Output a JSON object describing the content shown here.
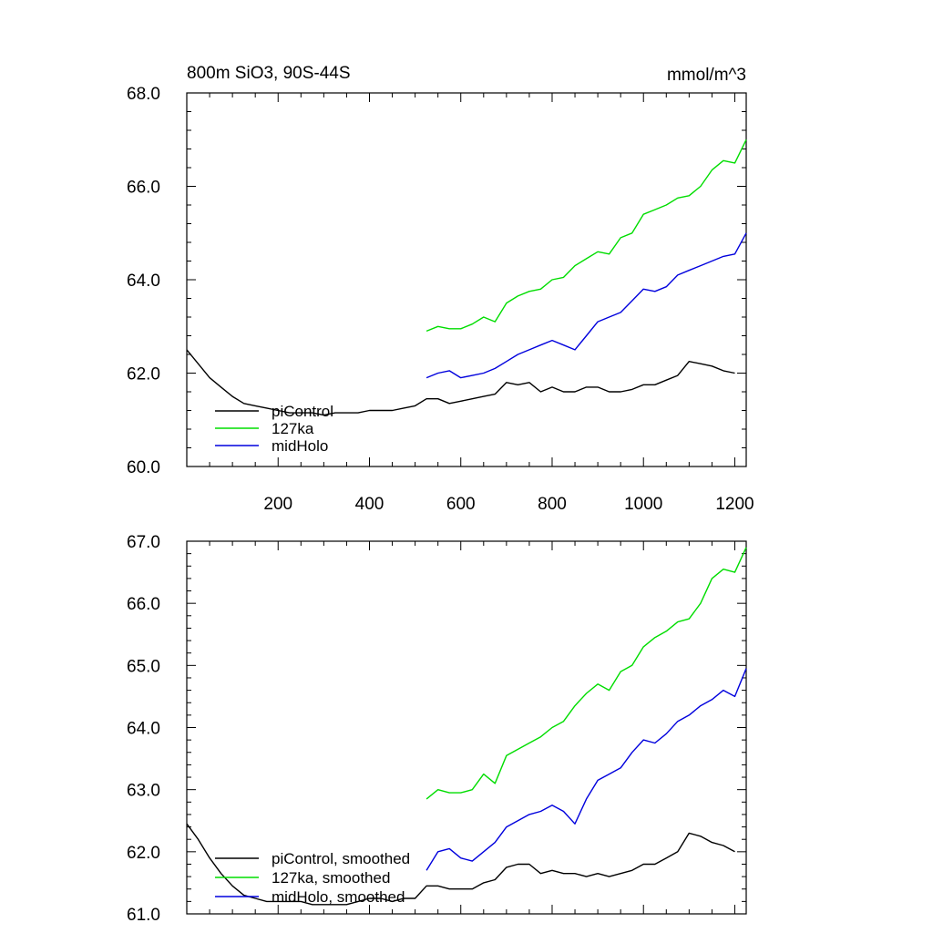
{
  "chart_data": [
    {
      "type": "line",
      "title": "800m SiO3, 90S-44S",
      "units": "mmol/m^3",
      "xlabel": "",
      "ylabel": "",
      "xlim": [
        0,
        1225
      ],
      "ylim": [
        60,
        68
      ],
      "xticks": [
        200,
        400,
        600,
        800,
        1000,
        1200
      ],
      "xtick_labels": [
        "200",
        "400",
        "600",
        "800",
        "1000",
        "1200"
      ],
      "yticks": [
        60,
        62,
        64,
        66,
        68
      ],
      "ytick_labels": [
        "60.0",
        "62.0",
        "64.0",
        "66.0",
        "68.0"
      ],
      "legend": "bottom-left",
      "series": [
        {
          "name": "piControl",
          "color": "#000000",
          "x": [
            0,
            25,
            50,
            75,
            100,
            125,
            150,
            175,
            200,
            225,
            250,
            275,
            300,
            325,
            350,
            375,
            400,
            425,
            450,
            475,
            500,
            525,
            550,
            575,
            600,
            625,
            650,
            675,
            700,
            725,
            750,
            775,
            800,
            825,
            850,
            875,
            900,
            925,
            950,
            975,
            1000,
            1025,
            1050,
            1075,
            1100,
            1125,
            1150,
            1175,
            1200
          ],
          "y": [
            62.5,
            62.2,
            61.9,
            61.7,
            61.5,
            61.35,
            61.3,
            61.25,
            61.2,
            61.15,
            61.15,
            61.15,
            61.1,
            61.15,
            61.15,
            61.15,
            61.2,
            61.2,
            61.2,
            61.25,
            61.3,
            61.45,
            61.45,
            61.35,
            61.4,
            61.45,
            61.5,
            61.55,
            61.8,
            61.75,
            61.8,
            61.6,
            61.7,
            61.6,
            61.6,
            61.7,
            61.7,
            61.6,
            61.6,
            61.65,
            61.75,
            61.75,
            61.85,
            61.95,
            62.25,
            62.2,
            62.15,
            62.05,
            62.0
          ]
        },
        {
          "name": "127ka",
          "color": "#00dd00",
          "x": [
            525,
            550,
            575,
            600,
            625,
            650,
            675,
            700,
            725,
            750,
            775,
            800,
            825,
            850,
            875,
            900,
            925,
            950,
            975,
            1000,
            1025,
            1050,
            1075,
            1100,
            1125,
            1150,
            1175,
            1200,
            1225
          ],
          "y": [
            62.9,
            63.0,
            62.95,
            62.95,
            63.05,
            63.2,
            63.1,
            63.5,
            63.65,
            63.75,
            63.8,
            64.0,
            64.05,
            64.3,
            64.45,
            64.6,
            64.55,
            64.9,
            65.0,
            65.4,
            65.5,
            65.6,
            65.75,
            65.8,
            66.0,
            66.35,
            66.55,
            66.5,
            67.0
          ]
        },
        {
          "name": "midHolo",
          "color": "#0000dd",
          "x": [
            525,
            550,
            575,
            600,
            625,
            650,
            675,
            700,
            725,
            750,
            775,
            800,
            825,
            850,
            875,
            900,
            925,
            950,
            975,
            1000,
            1025,
            1050,
            1075,
            1100,
            1125,
            1150,
            1175,
            1200,
            1225
          ],
          "y": [
            61.9,
            62.0,
            62.05,
            61.9,
            61.95,
            62.0,
            62.1,
            62.25,
            62.4,
            62.5,
            62.6,
            62.7,
            62.6,
            62.5,
            62.8,
            63.1,
            63.2,
            63.3,
            63.55,
            63.8,
            63.75,
            63.85,
            64.1,
            64.2,
            64.3,
            64.4,
            64.5,
            64.55,
            65.0
          ]
        }
      ]
    },
    {
      "type": "line",
      "title": "",
      "xlabel": "",
      "ylabel": "",
      "xlim": [
        0,
        1225
      ],
      "ylim": [
        61,
        67
      ],
      "xticks": [
        200,
        400,
        600,
        800,
        1000,
        1200
      ],
      "yticks": [
        61,
        62,
        63,
        64,
        65,
        66,
        67
      ],
      "ytick_labels": [
        "61.0",
        "62.0",
        "63.0",
        "64.0",
        "65.0",
        "66.0",
        "67.0"
      ],
      "legend": "bottom-left",
      "series": [
        {
          "name": "piControl, smoothed",
          "color": "#000000",
          "x": [
            0,
            25,
            50,
            75,
            100,
            125,
            150,
            175,
            200,
            225,
            250,
            275,
            300,
            325,
            350,
            375,
            400,
            425,
            450,
            475,
            500,
            525,
            550,
            575,
            600,
            625,
            650,
            675,
            700,
            725,
            750,
            775,
            800,
            825,
            850,
            875,
            900,
            925,
            950,
            975,
            1000,
            1025,
            1050,
            1075,
            1100,
            1125,
            1150,
            1175,
            1200
          ],
          "y": [
            62.45,
            62.2,
            61.9,
            61.65,
            61.45,
            61.3,
            61.25,
            61.2,
            61.2,
            61.2,
            61.2,
            61.15,
            61.15,
            61.15,
            61.15,
            61.2,
            61.25,
            61.25,
            61.2,
            61.25,
            61.25,
            61.45,
            61.45,
            61.4,
            61.4,
            61.4,
            61.5,
            61.55,
            61.75,
            61.8,
            61.8,
            61.65,
            61.7,
            61.65,
            61.65,
            61.6,
            61.65,
            61.6,
            61.65,
            61.7,
            61.8,
            61.8,
            61.9,
            62.0,
            62.3,
            62.25,
            62.15,
            62.1,
            62.0
          ]
        },
        {
          "name": "127ka, smoothed",
          "color": "#00dd00",
          "x": [
            525,
            550,
            575,
            600,
            625,
            650,
            675,
            700,
            725,
            750,
            775,
            800,
            825,
            850,
            875,
            900,
            925,
            950,
            975,
            1000,
            1025,
            1050,
            1075,
            1100,
            1125,
            1150,
            1175,
            1200,
            1225
          ],
          "y": [
            62.85,
            63.0,
            62.95,
            62.95,
            63.0,
            63.25,
            63.1,
            63.55,
            63.65,
            63.75,
            63.85,
            64.0,
            64.1,
            64.35,
            64.55,
            64.7,
            64.6,
            64.9,
            65.0,
            65.3,
            65.45,
            65.55,
            65.7,
            65.75,
            66.0,
            66.4,
            66.55,
            66.5,
            66.9
          ]
        },
        {
          "name": "midHolo, smoothed",
          "color": "#0000dd",
          "x": [
            525,
            550,
            575,
            600,
            625,
            650,
            675,
            700,
            725,
            750,
            775,
            800,
            825,
            850,
            875,
            900,
            925,
            950,
            975,
            1000,
            1025,
            1050,
            1075,
            1100,
            1125,
            1150,
            1175,
            1200,
            1225
          ],
          "y": [
            61.7,
            62.0,
            62.05,
            61.9,
            61.85,
            62.0,
            62.15,
            62.4,
            62.5,
            62.6,
            62.65,
            62.75,
            62.65,
            62.45,
            62.85,
            63.15,
            63.25,
            63.35,
            63.6,
            63.8,
            63.75,
            63.9,
            64.1,
            64.2,
            64.35,
            64.45,
            64.6,
            64.5,
            64.95
          ]
        }
      ]
    }
  ]
}
